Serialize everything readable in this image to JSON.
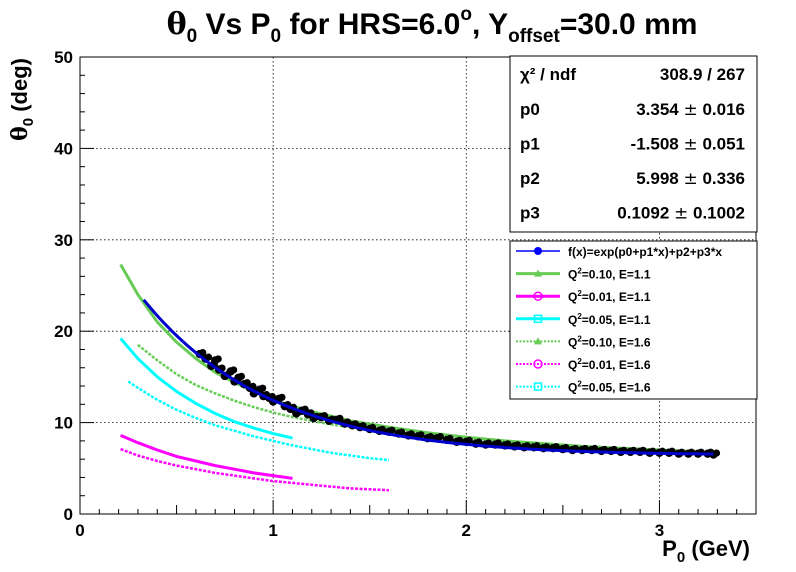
{
  "chart_data": {
    "type": "scatter",
    "title": {
      "theta": "θ",
      "theta_sub": "0",
      "mid1": " Vs P",
      "p_sub": "0",
      "mid2": " for HRS=6.0",
      "deg": "o",
      "mid3": ", Y",
      "y_sub": "offset",
      "tail": "=30.0 mm"
    },
    "xlabel": {
      "main": "P",
      "sub": "0",
      "tail": " (GeV)"
    },
    "ylabel": {
      "main": "θ",
      "sub": "0",
      "tail": " (deg)"
    },
    "xlim": [
      0,
      3.5
    ],
    "ylim": [
      0,
      50
    ],
    "xticks": [
      "0",
      "1",
      "2",
      "3"
    ],
    "yticks": [
      "0",
      "10",
      "20",
      "30",
      "40",
      "50"
    ],
    "grid": true,
    "fit_params": [
      "p0",
      "p1",
      "p2",
      "p3"
    ],
    "fit_values": [
      3.354,
      -1.508,
      5.998,
      0.1092
    ],
    "stats": {
      "chi2_label": "χ² / ndf",
      "chi2_value": "308.9 / 267",
      "rows": [
        {
          "name": "p0",
          "value": "3.354",
          "pm": "±",
          "err": "0.016"
        },
        {
          "name": "p1",
          "value": "-1.508",
          "pm": "±",
          "err": "0.051"
        },
        {
          "name": "p2",
          "value": "5.998",
          "pm": "±",
          "err": "0.336"
        },
        {
          "name": "p3",
          "value": "0.1092",
          "pm": "±",
          "err": "0.1002"
        }
      ]
    },
    "data_points": {
      "x": [
        0.62,
        0.65,
        0.68,
        0.7,
        0.72,
        0.75,
        0.78,
        0.8,
        0.82,
        0.85,
        0.88,
        0.9,
        0.93,
        0.95,
        0.98,
        1.0,
        1.03,
        1.06,
        1.09,
        1.12,
        1.15,
        1.18,
        1.21,
        1.25,
        1.29,
        1.33,
        1.37,
        1.41,
        1.45,
        1.5,
        1.55,
        1.6,
        1.65,
        1.7,
        1.75,
        1.8,
        1.85,
        1.9,
        1.95,
        2.0,
        2.05,
        2.1,
        2.15,
        2.2,
        2.25,
        2.3,
        2.35,
        2.4,
        2.45,
        2.5,
        2.55,
        2.6,
        2.65,
        2.7,
        2.75,
        2.8,
        2.85,
        2.9,
        2.95,
        3.0,
        3.05,
        3.1,
        3.15,
        3.2,
        3.25,
        3.28
      ],
      "y": [
        17.5,
        17.0,
        16.2,
        16.8,
        15.8,
        15.1,
        15.6,
        14.5,
        14.9,
        14.2,
        13.8,
        13.2,
        13.6,
        12.9,
        12.7,
        12.3,
        12.6,
        11.8,
        11.5,
        11.0,
        11.3,
        10.9,
        10.5,
        10.6,
        10.2,
        10.3,
        9.9,
        9.7,
        9.5,
        9.3,
        9.1,
        9.0,
        8.8,
        8.6,
        8.5,
        8.3,
        8.3,
        8.1,
        7.9,
        7.9,
        7.7,
        7.6,
        7.6,
        7.5,
        7.4,
        7.3,
        7.3,
        7.2,
        7.2,
        7.1,
        7.0,
        7.0,
        7.0,
        6.9,
        6.9,
        6.8,
        6.8,
        6.8,
        6.7,
        6.7,
        6.7,
        6.6,
        6.6,
        6.6,
        6.6,
        6.5
      ]
    },
    "fit_range": [
      0.33,
      3.28
    ],
    "curves": [
      {
        "x": [
          0.21,
          0.3,
          0.4,
          0.5,
          0.6,
          0.7,
          0.8,
          0.9,
          1.0,
          1.1,
          1.2,
          1.4,
          1.6,
          1.8,
          2.0,
          2.2,
          2.4,
          2.6,
          2.8,
          3.0,
          3.2,
          3.3
        ],
        "y": [
          27.3,
          24.0,
          21.0,
          18.8,
          17.0,
          15.5,
          14.4,
          13.4,
          12.5,
          11.8,
          11.2,
          10.2,
          9.5,
          8.9,
          8.4,
          8.0,
          7.7,
          7.4,
          7.2,
          7.0,
          6.8,
          6.7
        ]
      },
      {
        "x": [
          0.21,
          0.3,
          0.4,
          0.5,
          0.6,
          0.7,
          0.8,
          0.9,
          1.0,
          1.1
        ],
        "y": [
          8.6,
          7.8,
          7.0,
          6.3,
          5.8,
          5.3,
          4.9,
          4.5,
          4.2,
          3.9
        ]
      },
      {
        "x": [
          0.21,
          0.3,
          0.4,
          0.5,
          0.6,
          0.7,
          0.8,
          0.9,
          1.0,
          1.1
        ],
        "y": [
          19.2,
          17.0,
          15.0,
          13.4,
          12.1,
          11.0,
          10.1,
          9.4,
          8.8,
          8.3
        ]
      },
      {
        "x": [
          0.3,
          0.4,
          0.5,
          0.6,
          0.7,
          0.8,
          0.9,
          1.0,
          1.1,
          1.2,
          1.3,
          1.4,
          1.5,
          1.6
        ],
        "y": [
          18.5,
          16.8,
          15.3,
          14.1,
          13.2,
          12.4,
          11.7,
          11.1,
          10.6,
          10.2,
          9.8,
          9.5,
          9.2,
          8.9
        ]
      },
      {
        "x": [
          0.21,
          0.3,
          0.4,
          0.5,
          0.6,
          0.7,
          0.8,
          0.9,
          1.0,
          1.1,
          1.2,
          1.3,
          1.4,
          1.5,
          1.6
        ],
        "y": [
          7.1,
          6.4,
          5.8,
          5.3,
          4.9,
          4.5,
          4.2,
          3.9,
          3.6,
          3.4,
          3.2,
          3.0,
          2.8,
          2.7,
          2.6
        ]
      },
      {
        "x": [
          0.25,
          0.3,
          0.4,
          0.5,
          0.6,
          0.7,
          0.8,
          0.9,
          1.0,
          1.1,
          1.2,
          1.3,
          1.4,
          1.5,
          1.6
        ],
        "y": [
          14.5,
          13.8,
          12.5,
          11.4,
          10.5,
          9.7,
          9.1,
          8.5,
          8.0,
          7.5,
          7.1,
          6.7,
          6.4,
          6.1,
          5.9
        ]
      }
    ],
    "legend": {
      "placement": "right",
      "entries": [
        {
          "text": "f(x)=exp(p0+p1*x)+p2+p3*x",
          "color": "#0000ff",
          "marker": "dot",
          "line": "solid"
        },
        {
          "base": "Q",
          "sup": "2",
          "rest": "=0.10, E=1.1",
          "color": "#66cc55",
          "marker": "triangle",
          "line": "solid"
        },
        {
          "base": "Q",
          "sup": "2",
          "rest": "=0.01, E=1.1",
          "color": "#ff00ff",
          "marker": "circle",
          "line": "solid"
        },
        {
          "base": "Q",
          "sup": "2",
          "rest": "=0.05, E=1.1",
          "color": "#00ffff",
          "marker": "square",
          "line": "solid"
        },
        {
          "base": "Q",
          "sup": "2",
          "rest": "=0.10, E=1.6",
          "color": "#66cc55",
          "marker": "triangle",
          "line": "dashed"
        },
        {
          "base": "Q",
          "sup": "2",
          "rest": "=0.01, E=1.6",
          "color": "#ff00ff",
          "marker": "circle",
          "line": "dashed"
        },
        {
          "base": "Q",
          "sup": "2",
          "rest": "=0.05, E=1.6",
          "color": "#00ffff",
          "marker": "square",
          "line": "dashed"
        }
      ]
    },
    "colors": {
      "data": "#000000",
      "fit": "#0000cc"
    }
  }
}
